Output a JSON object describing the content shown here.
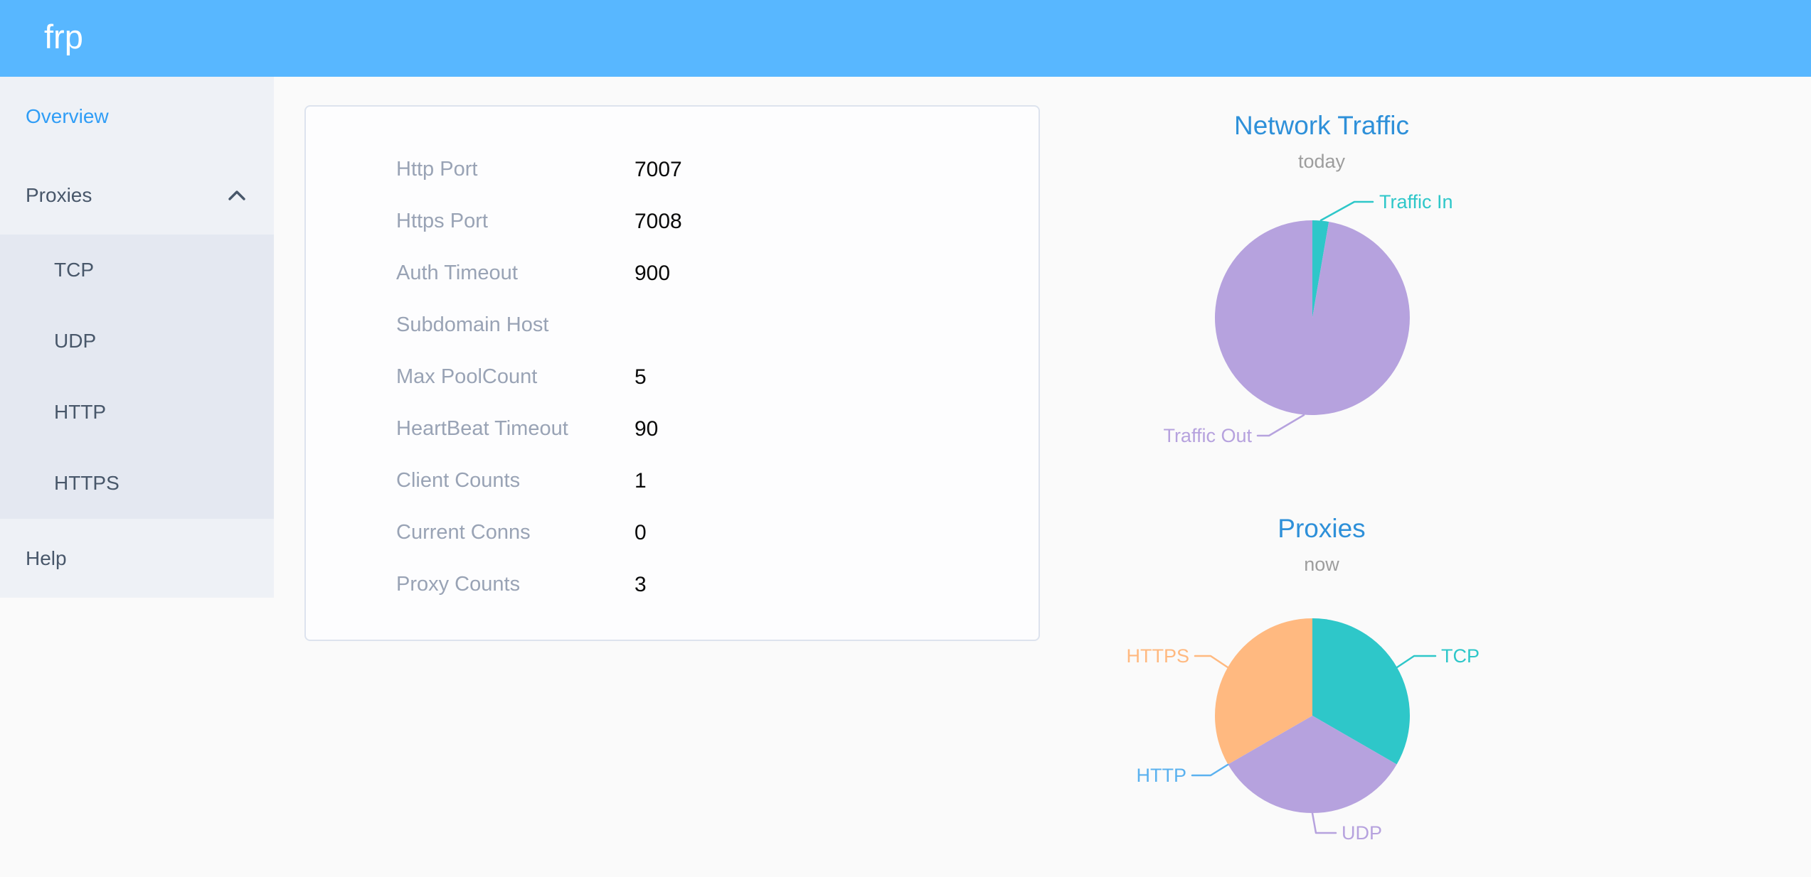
{
  "app": {
    "logo_text": "frp"
  },
  "colors": {
    "header_background": "#58b7ff",
    "sidebar_background": "#eef1f6",
    "submenu_background": "#e4e8f1",
    "menu_active": "#2f9df6",
    "menu_text": "#48576a",
    "chart_title": "#2e90d9",
    "chart_subtitle": "#9d9d9d",
    "card_label": "#99a3b5",
    "pie_teal": "#2ec7c9",
    "pie_purple": "#b6a2de",
    "pie_blue": "#5ab1ef",
    "pie_orange": "#ffb980"
  },
  "sidebar": {
    "overview_label": "Overview",
    "proxies_label": "Proxies",
    "submenu": [
      "TCP",
      "UDP",
      "HTTP",
      "HTTPS"
    ],
    "help_label": "Help"
  },
  "server_info_card": {
    "rows": [
      {
        "label": "Http Port",
        "value": "7007"
      },
      {
        "label": "Https Port",
        "value": "7008"
      },
      {
        "label": "Auth Timeout",
        "value": "900"
      },
      {
        "label": "Subdomain Host",
        "value": ""
      },
      {
        "label": "Max PoolCount",
        "value": "5"
      },
      {
        "label": "HeartBeat Timeout",
        "value": "90"
      },
      {
        "label": "Client Counts",
        "value": "1"
      },
      {
        "label": "Current Conns",
        "value": "0"
      },
      {
        "label": "Proxy Counts",
        "value": "3"
      }
    ]
  },
  "chart_data": [
    {
      "type": "pie",
      "title": "Network Traffic",
      "subtitle": "today",
      "legend_position": "outside-labels-with-leader-lines",
      "start_angle_deg": 0,
      "values_are_percent_estimates": true,
      "slices": [
        {
          "label": "Traffic In",
          "value": 2.7,
          "color": "#2ec7c9"
        },
        {
          "label": "Traffic Out",
          "value": 97.3,
          "color": "#b6a2de"
        }
      ]
    },
    {
      "type": "pie",
      "title": "Proxies",
      "subtitle": "now",
      "legend_position": "outside-labels-with-leader-lines",
      "start_angle_deg": 0,
      "slices": [
        {
          "label": "TCP",
          "value": 1,
          "color": "#2ec7c9"
        },
        {
          "label": "UDP",
          "value": 1,
          "color": "#b6a2de"
        },
        {
          "label": "HTTP",
          "value": 0,
          "color": "#5ab1ef"
        },
        {
          "label": "HTTPS",
          "value": 1,
          "color": "#ffb980"
        }
      ]
    }
  ]
}
